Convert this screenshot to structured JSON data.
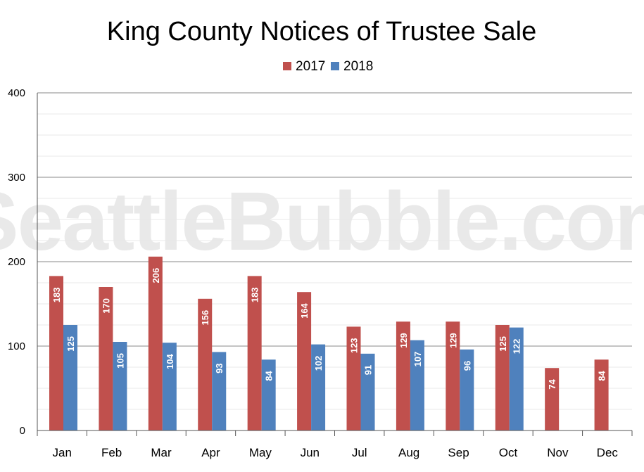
{
  "chart_data": {
    "type": "bar",
    "title": "King County Notices of Trustee Sale",
    "watermark": "SeattleBubble.com",
    "xlabel": "",
    "ylabel": "",
    "ylim": [
      0,
      400
    ],
    "yticks": [
      "0",
      "100",
      "200",
      "300",
      "400"
    ],
    "categories": [
      "Jan",
      "Feb",
      "Mar",
      "Apr",
      "May",
      "Jun",
      "Jul",
      "Aug",
      "Sep",
      "Oct",
      "Nov",
      "Dec"
    ],
    "series": [
      {
        "name": "2017",
        "color": "#c0504d",
        "values": [
          183,
          170,
          206,
          156,
          183,
          164,
          123,
          129,
          129,
          125,
          74,
          84
        ]
      },
      {
        "name": "2018",
        "color": "#4f81bd",
        "values": [
          125,
          105,
          104,
          93,
          84,
          102,
          91,
          107,
          96,
          122,
          null,
          null
        ]
      }
    ],
    "legend": "top-center",
    "grid": true
  }
}
